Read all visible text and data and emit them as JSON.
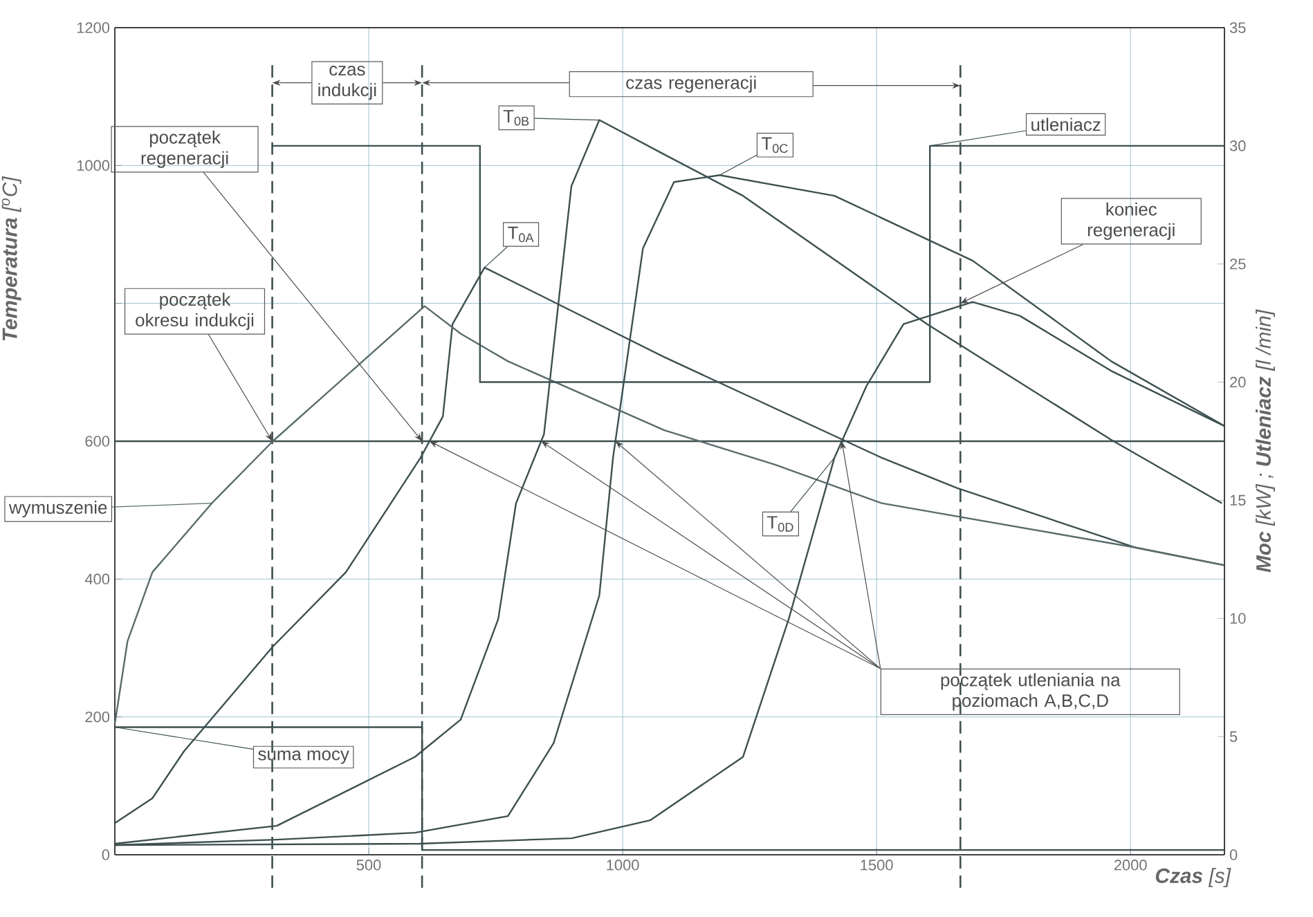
{
  "chart_data": {
    "type": "line",
    "xlabel": "**Czas** [s]",
    "ylabel": "**Temperatura** [$^{o}$C]",
    "y2label": "**Moc** [kW] ; **Utleniacz** [l /min]",
    "xlim": [
      0,
      2185
    ],
    "xticks": [
      500,
      1000,
      1500,
      2000
    ],
    "ylim": [
      0,
      1200
    ],
    "yticks": [
      0,
      200,
      400,
      600,
      {
        "value": 800,
        "label": null
      },
      1000,
      1200
    ],
    "y2lim": [
      0,
      35
    ],
    "y2ticks": [
      0,
      5,
      10,
      15,
      20,
      25,
      30,
      35
    ],
    "grid": true,
    "series": [
      {
        "name": "T$_{0A}$",
        "color": "#3d4f4f",
        "x": [
          0,
          74,
          136,
          311,
          455,
          602,
          646,
          665,
          728,
          1082,
          1510,
          1659,
          2008,
          2185
        ],
        "values": [
          46,
          82,
          150,
          302,
          410,
          576,
          636,
          770,
          852,
          722,
          576,
          532,
          446,
          420
        ]
      },
      {
        "name": "T$_{0B}$",
        "color": "#3d4f4f",
        "x": [
          0,
          319,
          591,
          681,
          755,
          790,
          845,
          899,
          954,
          1082,
          1237,
          1599,
          1962,
          2180
        ],
        "values": [
          16,
          42,
          142,
          196,
          342,
          510,
          610,
          970,
          1066,
          1016,
          956,
          770,
          602,
          510
        ]
      },
      {
        "name": "T$_{0C}$",
        "color": "#3d4f4f",
        "x": [
          0,
          319,
          591,
          774,
          864,
          954,
          981,
          1040,
          1101,
          1191,
          1417,
          1689,
          1962,
          2185
        ],
        "values": [
          14,
          22,
          32,
          56,
          162,
          376,
          576,
          880,
          976,
          986,
          956,
          862,
          716,
          622
        ]
      },
      {
        "name": "T$_{0D}$",
        "color": "#3d4f4f",
        "x": [
          0,
          600,
          900,
          1054,
          1237,
          1327,
          1417,
          1480,
          1553,
          1689,
          1782,
          1962,
          2185
        ],
        "values": [
          14,
          16,
          24,
          50,
          142,
          342,
          576,
          680,
          770,
          802,
          782,
          702,
          622
        ]
      },
      {
        "name": "wymuszenie",
        "color": "#5a6b6b",
        "x": [
          0,
          25,
          74,
          191,
          311,
          610,
          681,
          774,
          1082,
          1300,
          1510,
          2008,
          2185
        ],
        "values": [
          190,
          310,
          410,
          510,
          600,
          796,
          756,
          716,
          616,
          566,
          510,
          446,
          420
        ]
      },
      {
        "name": "suma mocy",
        "type": "step",
        "axis": "y2",
        "color": "#3d4f4f",
        "x": [
          0,
          605,
          2185
        ],
        "values": [
          5.4,
          0.2,
          0.2
        ]
      },
      {
        "name": "utleniacz",
        "type": "step",
        "axis": "y2",
        "color": "#3d4f4f",
        "x": [
          310,
          719,
          1605,
          2185
        ],
        "values": [
          30,
          20,
          30,
          30
        ]
      }
    ],
    "ref_lines": [
      {
        "axis": "y",
        "value": 600,
        "color": "#3d4f4f"
      },
      {
        "axis": "x",
        "value": 310,
        "color": "#3d4f4f",
        "line_style": "dashed"
      },
      {
        "axis": "x",
        "value": 605,
        "color": "#3d4f4f",
        "line_style": "dashed"
      },
      {
        "axis": "x",
        "value": 1665,
        "color": "#3d4f4f",
        "line_style": "dashed"
      }
    ],
    "annotations": [
      {
        "text": "czas indukcji",
        "x": 605,
        "y": 1120
      },
      "czas regeneracji",
      {
        "text": "początek regeneracji",
        "x": 605,
        "y": 600
      },
      {
        "text": "początek okresu indukcji",
        "x": 310,
        "y": 600
      },
      {
        "text": "koniec regeneracji",
        "x": 1665,
        "y": 800
      },
      "początek utleniania na poziomach A,B,C,D"
    ]
  }
}
